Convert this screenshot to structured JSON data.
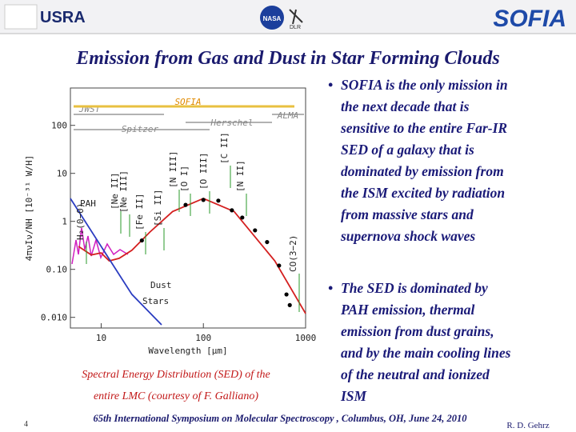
{
  "header": {
    "left_logo": "USRA",
    "center_logos": [
      "NASA",
      "DLR"
    ],
    "right_logo": "SOFIA"
  },
  "title": "Emission from Gas and Dust in Star Forming Clouds",
  "chart_data": {
    "type": "line",
    "xlabel": "Wavelength [μm]",
    "ylabel": "4πνIν/NH [10⁻³¹ W/H]",
    "log_x": true,
    "log_y": true,
    "xlim": [
      5,
      1000
    ],
    "ylim": [
      0.006,
      600
    ],
    "xticks": [
      10,
      100,
      1000
    ],
    "yticks": [
      {
        "value": 0.01,
        "label": "0.010"
      },
      {
        "value": 0.1,
        "label": "0.10"
      },
      1,
      10,
      100
    ],
    "series": [
      {
        "name": "Dust",
        "color": "#d42020",
        "x": [
          6,
          8,
          10,
          12,
          15,
          20,
          30,
          50,
          100,
          200,
          500,
          1000
        ],
        "values": [
          0.3,
          0.2,
          0.22,
          0.15,
          0.17,
          0.25,
          0.6,
          1.6,
          3,
          1.6,
          0.15,
          0.012
        ]
      },
      {
        "name": "Stars",
        "color": "#2a3cc0",
        "x": [
          5,
          10,
          20,
          39
        ],
        "values": [
          3,
          0.3,
          0.03,
          0.007
        ]
      }
    ],
    "points": {
      "color": "#000000",
      "x": [
        25,
        67,
        100,
        140,
        190,
        240,
        320,
        420,
        550,
        650,
        700
      ],
      "values": [
        0.4,
        2.2,
        2.8,
        2.7,
        1.7,
        1.2,
        0.65,
        0.37,
        0.12,
        0.03,
        0.018
      ]
    },
    "instruments": [
      "JWST",
      "SOFIA",
      "ALMA",
      "Spitzer",
      "Herschel"
    ],
    "features": [
      "PAH",
      "H₂(0−0)",
      "[Ne II]",
      "[Ne III]",
      "[Fe II]",
      "[Si II]",
      "[N III]",
      "[O I]",
      "[O III]",
      "[C II]",
      "[N II]",
      "CO(3−2)"
    ]
  },
  "caption": [
    "Spectral Energy Distribution (SED) of  the",
    "entire LMC (courtesy of F. Galliano)"
  ],
  "bullets": [
    [
      "SOFIA is the only mission in",
      "the next decade that is",
      "sensitive to the entire Far-IR",
      "SED of a galaxy that is",
      "dominated by emission from",
      "the ISM excited by radiation",
      "from massive stars and",
      "supernova shock waves"
    ],
    [
      "The SED is dominated by",
      "PAH emission, thermal",
      "emission from dust grains,",
      "and by the main cooling lines",
      "of the neutral and ionized",
      "ISM"
    ]
  ],
  "footer": {
    "page": "4",
    "text": "65th International Symposium on Molecular Spectroscopy , Columbus, OH, June 24, 2010",
    "author": "R. D. Gehrz"
  }
}
